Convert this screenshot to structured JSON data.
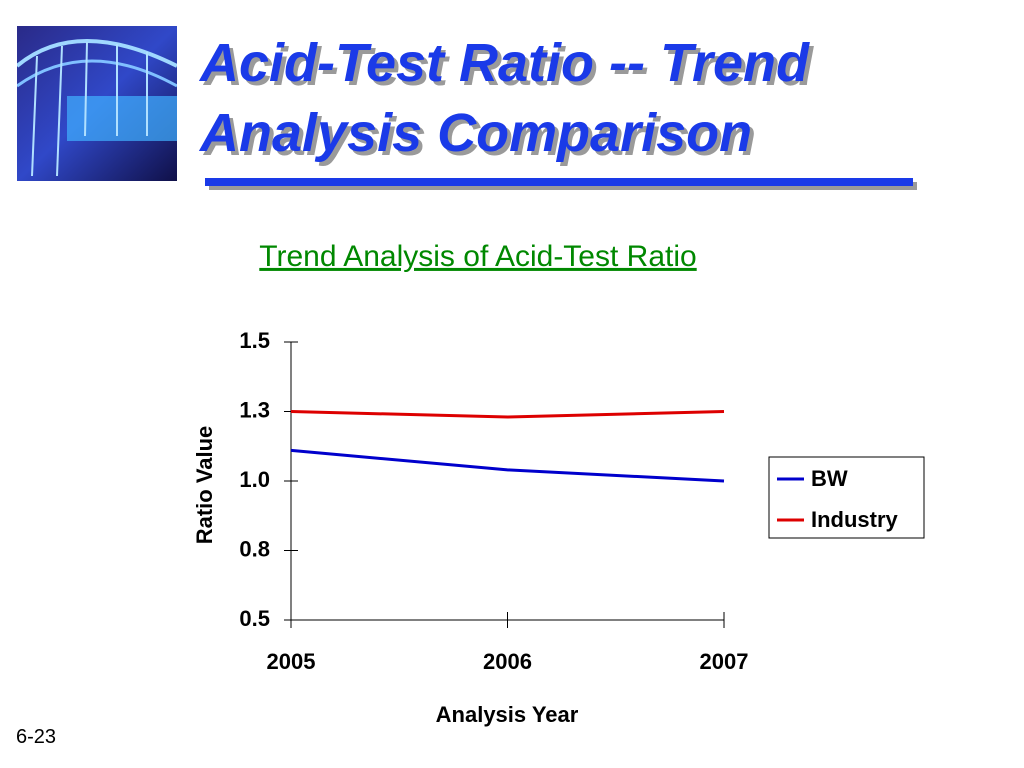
{
  "slide_title": "Acid-Test Ratio -- Trend Analysis Comparison",
  "page_number": "6-23",
  "chart_data": {
    "type": "line",
    "title": "Trend Analysis of Acid-Test Ratio",
    "x_label": "Analysis Year",
    "y_label": "Ratio Value",
    "categories": [
      "2005",
      "2006",
      "2007"
    ],
    "series": [
      {
        "name": "BW",
        "color": "#0000cc",
        "values": [
          1.11,
          1.04,
          1.0
        ]
      },
      {
        "name": "Industry",
        "color": "#dd0000",
        "values": [
          1.25,
          1.23,
          1.25
        ]
      }
    ],
    "ylim": [
      0.5,
      1.5
    ],
    "yticks": [
      0.5,
      {
        "value": 0.75,
        "label": "0.8"
      },
      {
        "value": 1,
        "label": "1.0"
      },
      {
        "value": 1.25,
        "label": "1.3"
      },
      1.5
    ],
    "legend": "right",
    "grid": false
  }
}
